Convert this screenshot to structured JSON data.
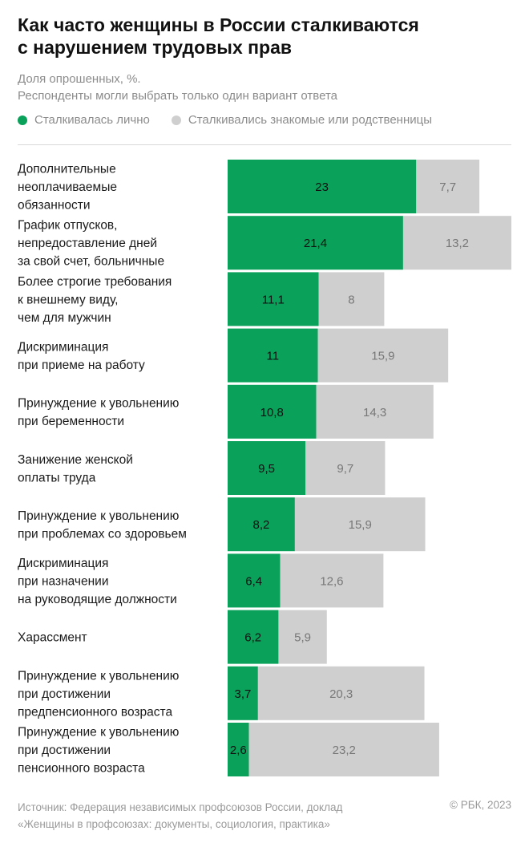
{
  "header": {
    "title_line1": "Как часто женщины в России сталкиваются",
    "title_line2": "с нарушением трудовых прав",
    "subtitle_line1": "Доля опрошенных, %.",
    "subtitle_line2": "Респонденты могли выбрать только один вариант ответа"
  },
  "legend": {
    "personal": "Сталкивалась лично",
    "acquaintances": "Сталкивались знакомые или родственницы"
  },
  "colors": {
    "personal": "#0aa15a",
    "acquaintances": "#cfcfcf"
  },
  "chart_data": {
    "type": "bar",
    "stacked": true,
    "orientation": "horizontal",
    "categories": [
      [
        "Дополнительные",
        "неоплачиваемые",
        "обязанности"
      ],
      [
        "График отпусков,",
        "непредоставление дней",
        "за свой счет, больничные"
      ],
      [
        "Более строгие требования",
        "к внешнему виду,",
        "чем для мужчин"
      ],
      [
        "Дискриминация",
        "при приеме на работу"
      ],
      [
        "Принуждение к увольнению",
        "при беременности"
      ],
      [
        "Занижение женской",
        "оплаты труда"
      ],
      [
        "Принуждение к увольнению",
        "при проблемах со здоровьем"
      ],
      [
        "Дискриминация",
        "при назначении",
        "на руководящие должности"
      ],
      [
        "Харассмент"
      ],
      [
        "Принуждение к увольнению",
        "при достижении",
        "предпенсионного возраста"
      ],
      [
        "Принуждение к увольнению",
        "при достижении",
        "пенсионного возраста"
      ]
    ],
    "series": [
      {
        "name": "Сталкивалась лично",
        "values": [
          23,
          21.4,
          11.1,
          11,
          10.8,
          9.5,
          8.2,
          6.4,
          6.2,
          3.7,
          2.6
        ],
        "labels": [
          "23",
          "21,4",
          "11,1",
          "11",
          "10,8",
          "9,5",
          "8,2",
          "6,4",
          "6,2",
          "3,7",
          "2,6"
        ]
      },
      {
        "name": "Сталкивались знакомые или родственницы",
        "values": [
          7.7,
          13.2,
          8,
          15.9,
          14.3,
          9.7,
          15.9,
          12.6,
          5.9,
          20.3,
          23.2
        ],
        "labels": [
          "7,7",
          "13,2",
          "8",
          "15,9",
          "14,3",
          "9,7",
          "15,9",
          "12,6",
          "5,9",
          "20,3",
          "23,2"
        ]
      }
    ],
    "xlim": [
      0,
      36
    ],
    "grid": false,
    "legend_position": "top-left"
  },
  "footer": {
    "source_line1": "Источник: Федерация независимых профсоюзов России, доклад",
    "source_line2": "«Женщины в профсоюзах: документы, социология, практика»",
    "copyright": "© РБК, 2023"
  }
}
